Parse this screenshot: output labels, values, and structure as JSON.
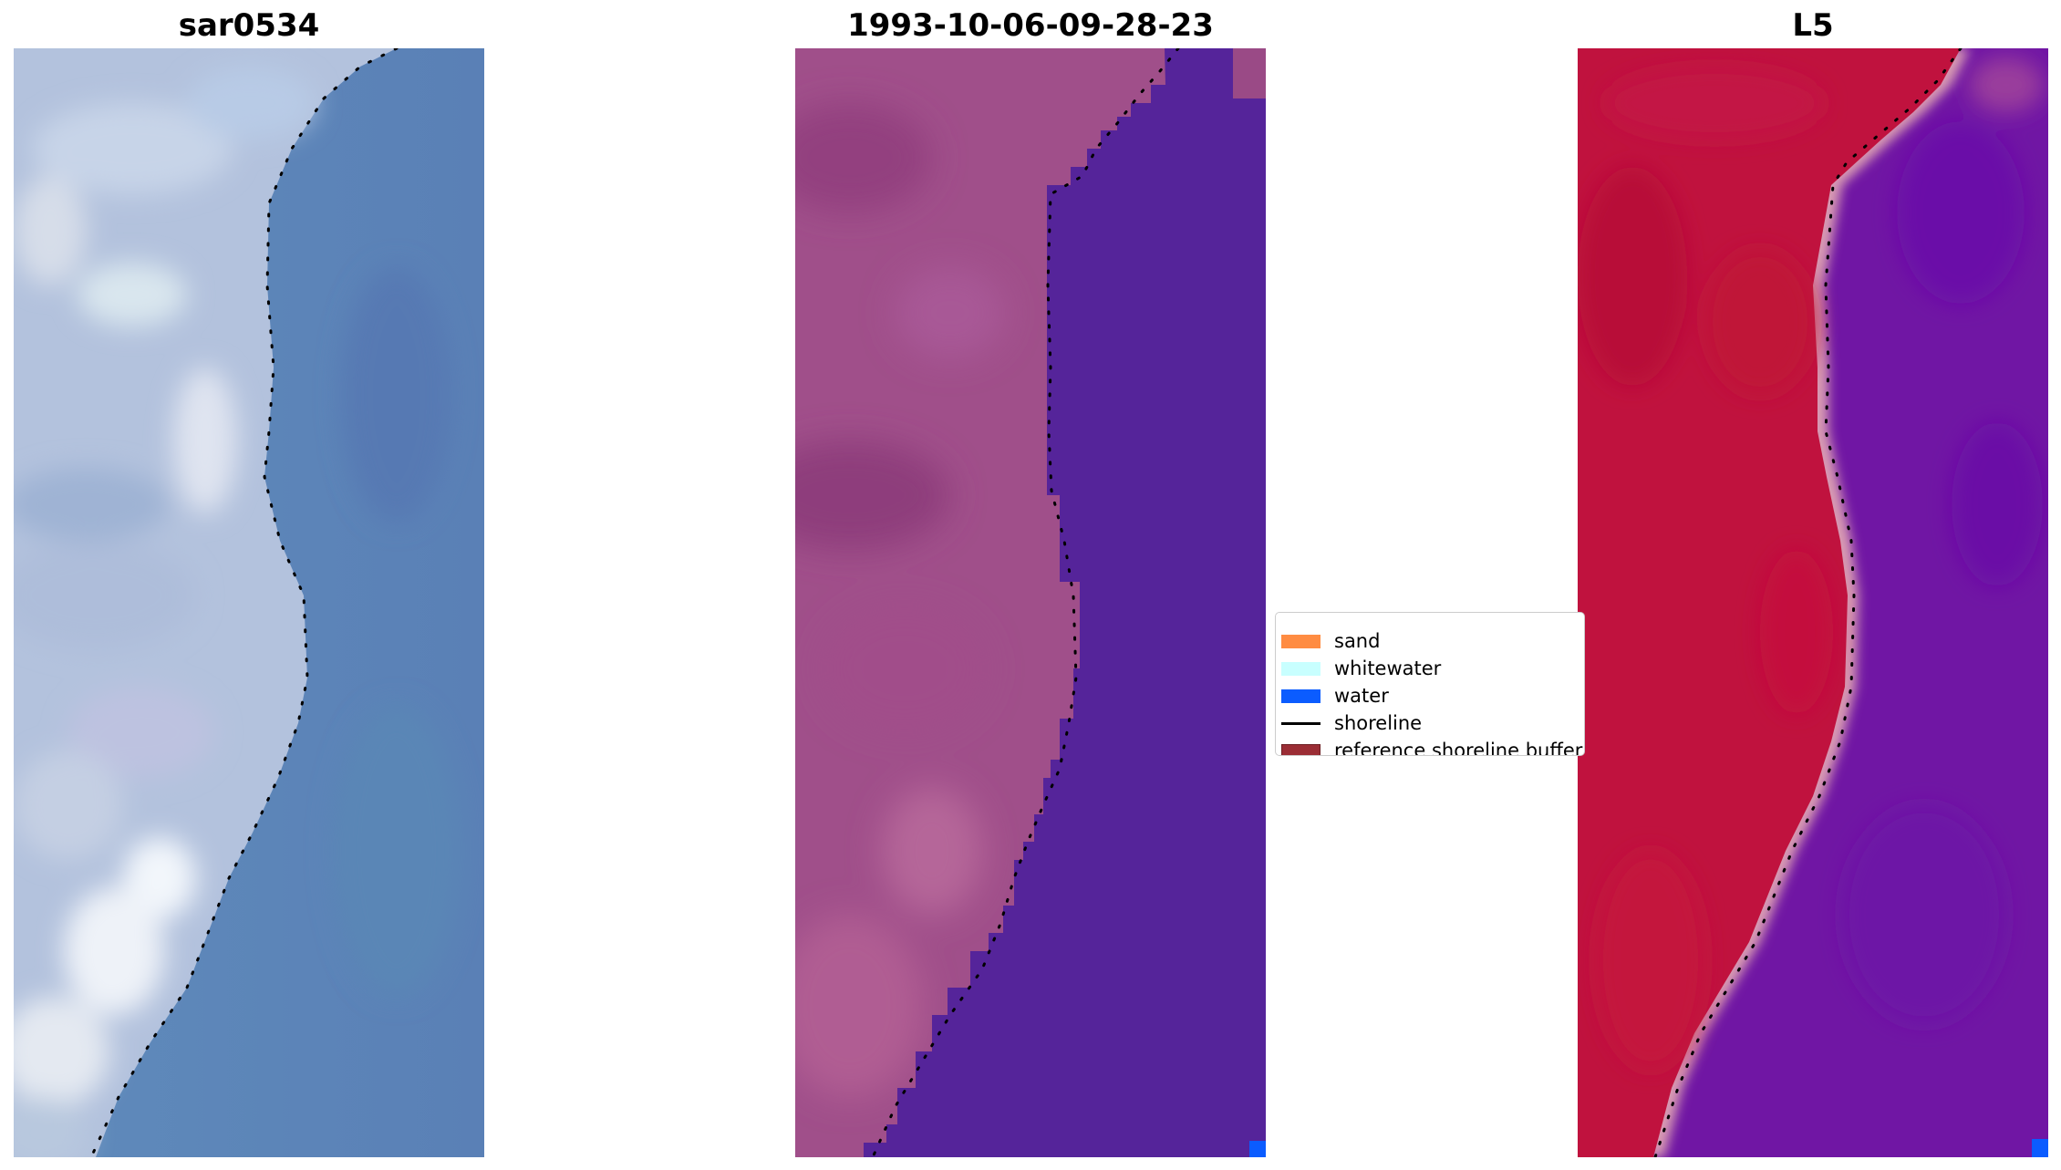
{
  "panels": [
    {
      "title": "sar0534"
    },
    {
      "title": "1993-10-06-09-28-23"
    },
    {
      "title": "L5"
    }
  ],
  "legend": {
    "items": [
      {
        "label": "sand",
        "kind": "patch",
        "color": "#ff8c42"
      },
      {
        "label": "whitewater",
        "kind": "patch",
        "color": "#c8ffff"
      },
      {
        "label": "water",
        "kind": "patch",
        "color": "#0b5cff"
      },
      {
        "label": "shoreline",
        "kind": "line",
        "color": "#000000"
      },
      {
        "label": "reference shoreline buffer",
        "kind": "patch",
        "color": "#9b2d35"
      }
    ]
  },
  "colors": {
    "rgb_land": "#bcc9e0",
    "rgb_water": "#5f86b7",
    "classified_land": "#a04f8a",
    "classified_water": "#55249a",
    "mndwi_land": "#c2113b",
    "mndwi_water": "#7016a4",
    "shoreline_dots": "#000000"
  }
}
